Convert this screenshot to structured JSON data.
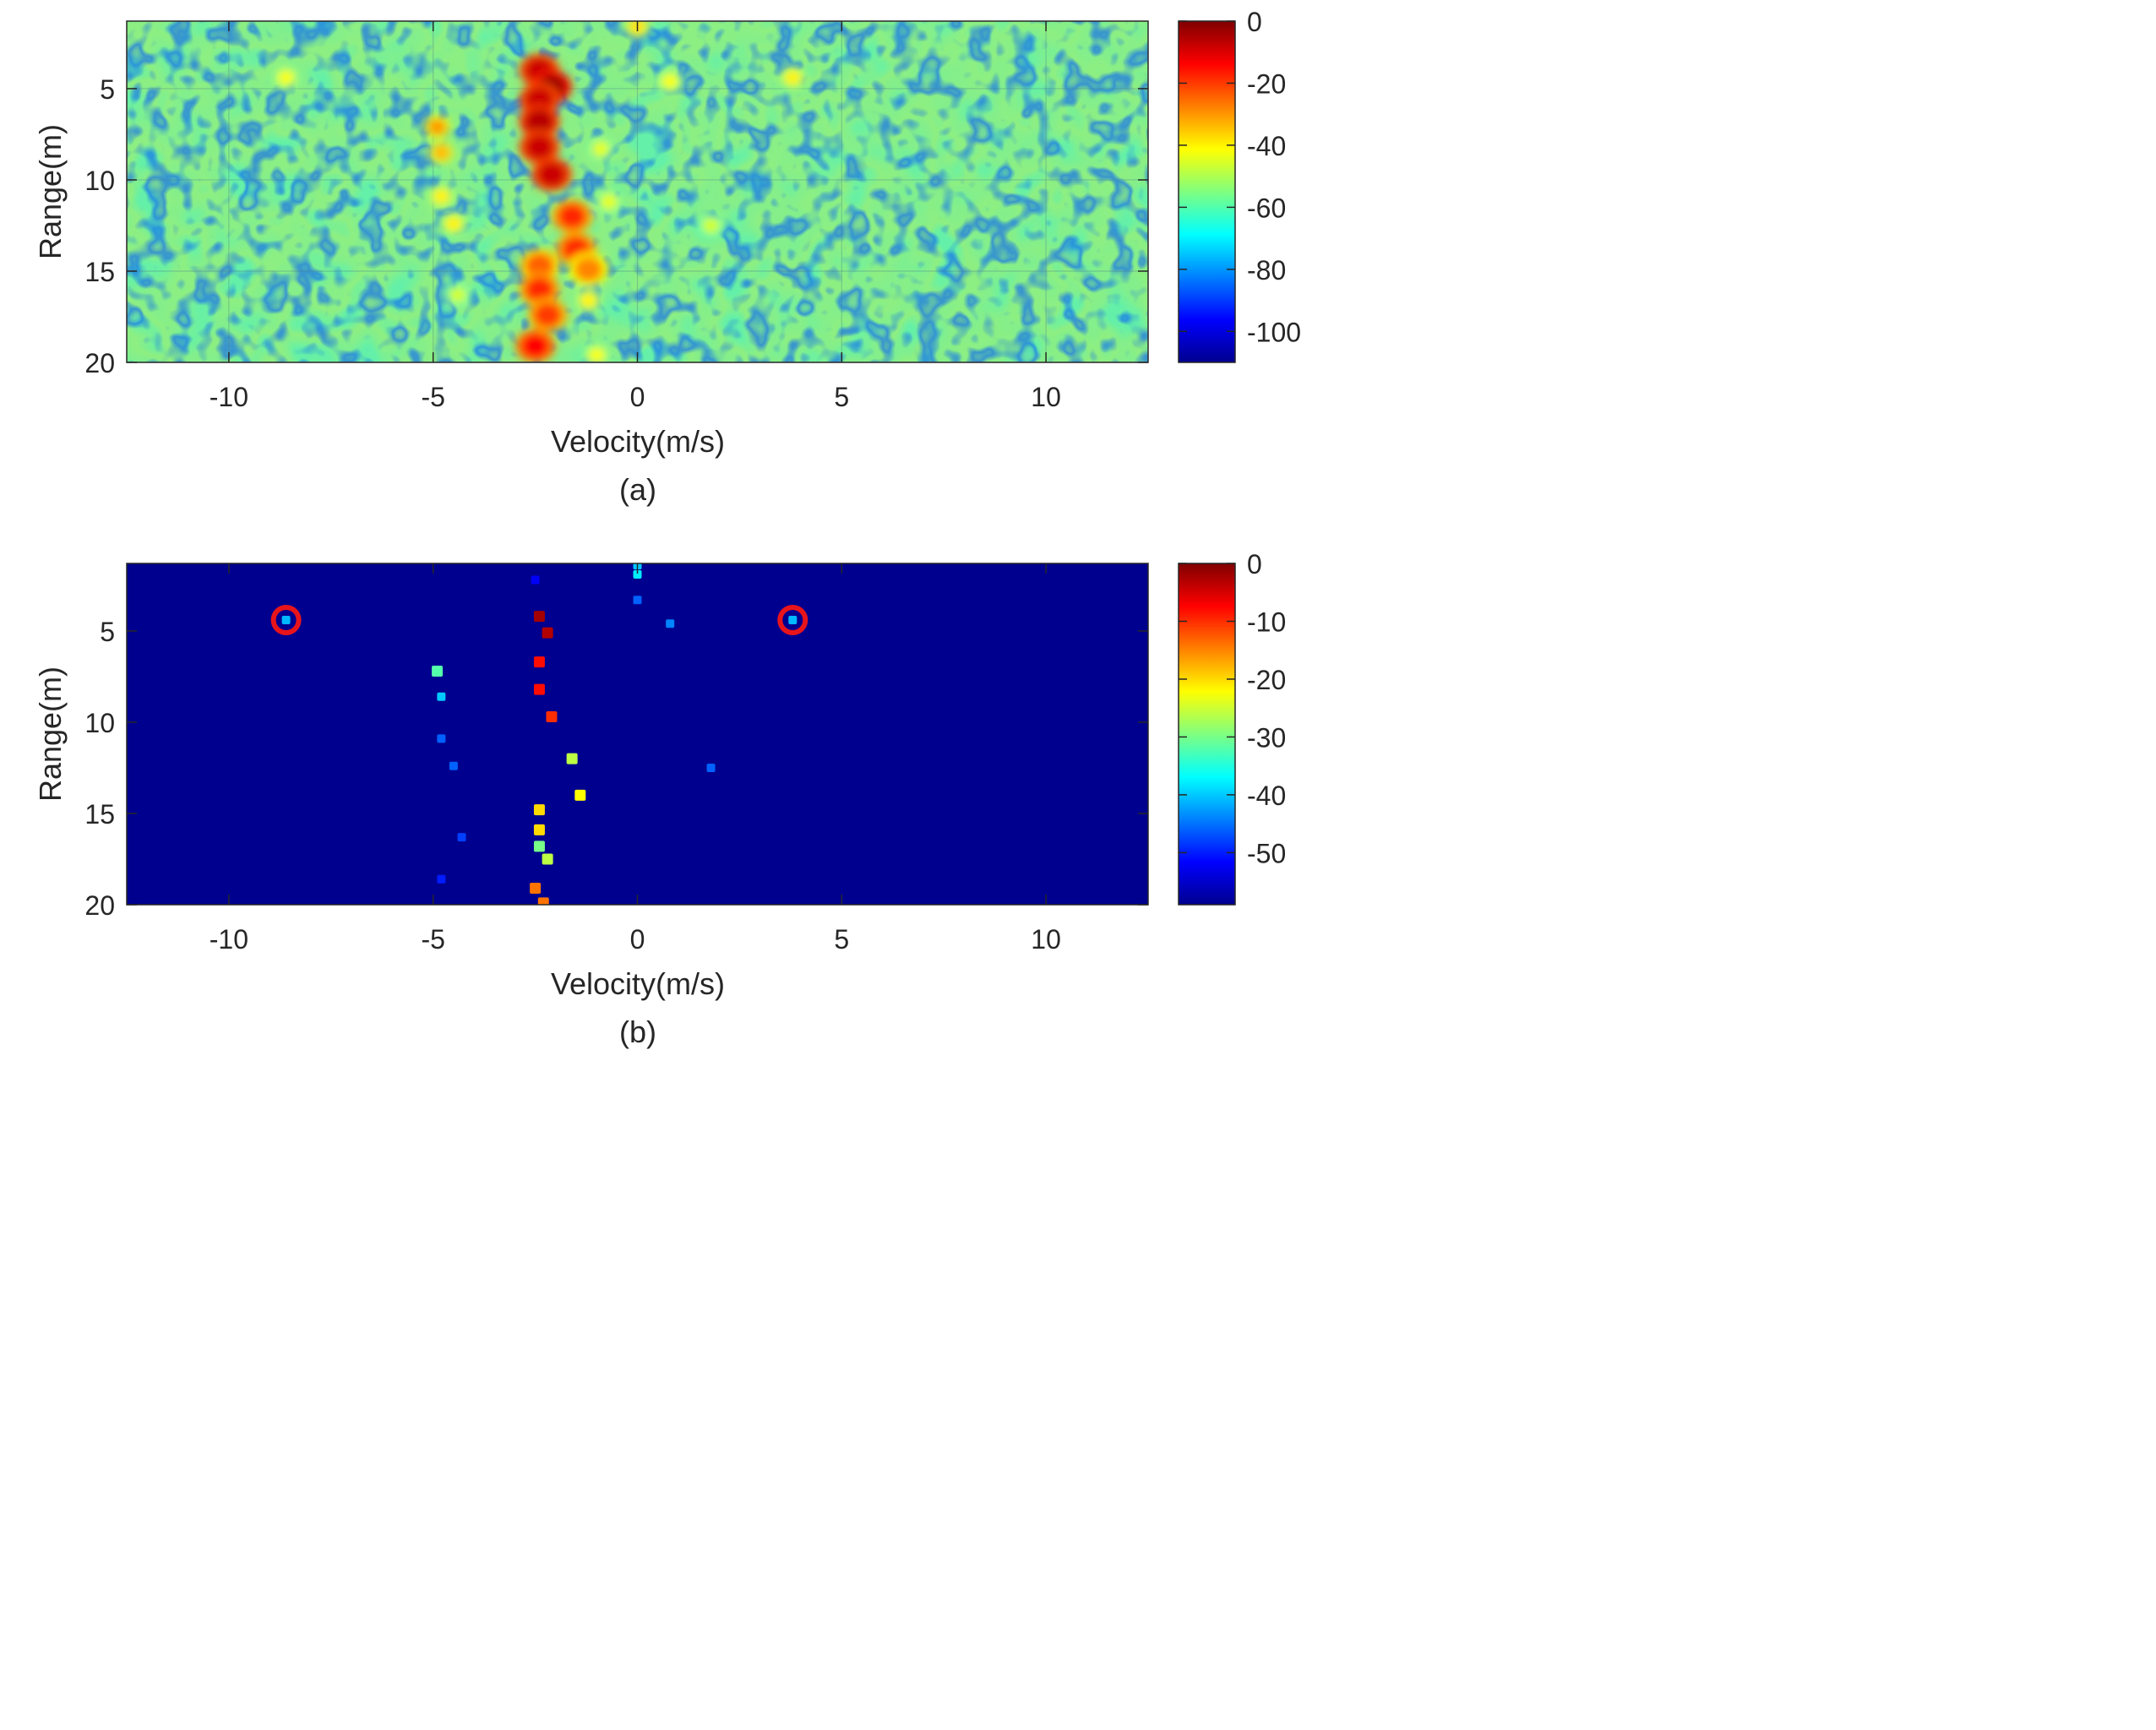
{
  "chart_data": [
    {
      "panel_label": "(a)",
      "type": "heatmap",
      "xlabel": "Velocity(m/s)",
      "ylabel": "Range(m)",
      "xlim": [
        -12.5,
        12.5
      ],
      "ylim": [
        1.3,
        20
      ],
      "y_reversed": true,
      "xticks": [
        -10,
        -5,
        0,
        5,
        10
      ],
      "xtick_labels": [
        "-10",
        "-5",
        "0",
        "5",
        "10"
      ],
      "yticks": [
        5,
        10,
        15,
        20
      ],
      "ytick_labels": [
        "5",
        "10",
        "15",
        "20"
      ],
      "grid": true,
      "colormap": "jet",
      "colorbar": {
        "range": [
          -110,
          0
        ],
        "ticks": [
          0,
          -20,
          -40,
          -60,
          -80,
          -100
        ],
        "tick_labels": [
          "0",
          "-20",
          "-40",
          "-60",
          "-80",
          "-100"
        ]
      },
      "background_level": -62,
      "targets": [
        {
          "velocity": -2.4,
          "range": 4.0,
          "level": -8
        },
        {
          "velocity": -2.1,
          "range": 4.9,
          "level": -3
        },
        {
          "velocity": -2.4,
          "range": 5.6,
          "level": -8
        },
        {
          "velocity": -2.4,
          "range": 6.8,
          "level": -6
        },
        {
          "velocity": -2.4,
          "range": 8.2,
          "level": -8
        },
        {
          "velocity": -2.1,
          "range": 9.7,
          "level": -8
        },
        {
          "velocity": -1.6,
          "range": 12.0,
          "level": -18
        },
        {
          "velocity": -1.5,
          "range": 13.8,
          "level": -18
        },
        {
          "velocity": -1.2,
          "range": 14.9,
          "level": -28
        },
        {
          "velocity": -2.4,
          "range": 14.7,
          "level": -24
        },
        {
          "velocity": -2.4,
          "range": 16.0,
          "level": -18
        },
        {
          "velocity": -2.2,
          "range": 17.4,
          "level": -20
        },
        {
          "velocity": -2.5,
          "range": 19.1,
          "level": -14
        },
        {
          "velocity": -4.9,
          "range": 7.1,
          "level": -30
        },
        {
          "velocity": -4.8,
          "range": 8.5,
          "level": -34
        },
        {
          "velocity": -4.8,
          "range": 10.9,
          "level": -40
        },
        {
          "velocity": -4.5,
          "range": 12.4,
          "level": -40
        },
        {
          "velocity": -8.6,
          "range": 4.4,
          "level": -42
        },
        {
          "velocity": 3.8,
          "range": 4.4,
          "level": -40
        },
        {
          "velocity": 0.8,
          "range": 4.6,
          "level": -42
        },
        {
          "velocity": 0.0,
          "range": 1.6,
          "level": -38
        },
        {
          "velocity": -0.9,
          "range": 8.3,
          "level": -44
        },
        {
          "velocity": -0.7,
          "range": 11.2,
          "level": -44
        },
        {
          "velocity": 1.8,
          "range": 12.5,
          "level": -46
        },
        {
          "velocity": -1.2,
          "range": 16.6,
          "level": -40
        },
        {
          "velocity": -1.0,
          "range": 19.6,
          "level": -42
        },
        {
          "velocity": -4.4,
          "range": 16.3,
          "level": -46
        }
      ]
    },
    {
      "panel_label": "(b)",
      "type": "heatmap",
      "xlabel": "Velocity(m/s)",
      "ylabel": "Range(m)",
      "xlim": [
        -12.5,
        12.5
      ],
      "ylim": [
        1.3,
        20
      ],
      "y_reversed": true,
      "xticks": [
        -10,
        -5,
        0,
        5,
        10
      ],
      "xtick_labels": [
        "-10",
        "-5",
        "0",
        "5",
        "10"
      ],
      "yticks": [
        5,
        10,
        15,
        20
      ],
      "ytick_labels": [
        "5",
        "10",
        "15",
        "20"
      ],
      "grid": false,
      "colormap": "jet",
      "colorbar": {
        "range": [
          -59,
          0
        ],
        "ticks": [
          0,
          -10,
          -20,
          -30,
          -40,
          -50
        ],
        "tick_labels": [
          "0",
          "-10",
          "-20",
          "-30",
          "-40",
          "-50"
        ]
      },
      "background_level": -59,
      "highlight_color": "#e8141b",
      "detections": [
        {
          "velocity": -2.4,
          "range": 4.2,
          "level": -2
        },
        {
          "velocity": -2.2,
          "range": 5.1,
          "level": -3
        },
        {
          "velocity": -2.4,
          "range": 6.7,
          "level": -8
        },
        {
          "velocity": -2.4,
          "range": 8.2,
          "level": -8
        },
        {
          "velocity": -2.1,
          "range": 9.7,
          "level": -10
        },
        {
          "velocity": -1.6,
          "range": 12.0,
          "level": -26
        },
        {
          "velocity": -1.4,
          "range": 14.0,
          "level": -22
        },
        {
          "velocity": -2.4,
          "range": 14.8,
          "level": -20
        },
        {
          "velocity": -2.4,
          "range": 15.9,
          "level": -20
        },
        {
          "velocity": -2.4,
          "range": 16.8,
          "level": -30
        },
        {
          "velocity": -2.2,
          "range": 17.5,
          "level": -26
        },
        {
          "velocity": -2.5,
          "range": 19.1,
          "level": -14
        },
        {
          "velocity": -2.3,
          "range": 19.9,
          "level": -14
        },
        {
          "velocity": -2.5,
          "range": 2.2,
          "level": -52
        },
        {
          "velocity": -4.9,
          "range": 7.2,
          "level": -32
        },
        {
          "velocity": -4.8,
          "range": 8.6,
          "level": -40
        },
        {
          "velocity": -4.8,
          "range": 10.9,
          "level": -46
        },
        {
          "velocity": -4.5,
          "range": 12.4,
          "level": -46
        },
        {
          "velocity": -4.3,
          "range": 16.3,
          "level": -48
        },
        {
          "velocity": -4.8,
          "range": 18.6,
          "level": -50
        },
        {
          "velocity": -8.6,
          "range": 4.4,
          "level": -41,
          "circled": true
        },
        {
          "velocity": 3.8,
          "range": 4.4,
          "level": -41,
          "circled": true
        },
        {
          "velocity": 0.8,
          "range": 4.6,
          "level": -44
        },
        {
          "velocity": 1.8,
          "range": 12.5,
          "level": -46
        },
        {
          "velocity": 0.0,
          "range": 1.4,
          "level": -40
        },
        {
          "velocity": 0.0,
          "range": 1.9,
          "level": -38
        },
        {
          "velocity": 0.0,
          "range": 3.3,
          "level": -46
        }
      ]
    }
  ]
}
